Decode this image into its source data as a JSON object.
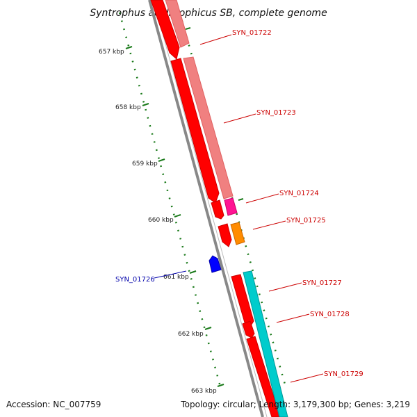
{
  "title": "Syntrophus aciditrophicus SB, complete genome",
  "footer": {
    "accession": "Accession: NC_007759",
    "topology": "Topology: circular; Length: 3,179,300 bp; Genes: 3,219"
  },
  "ticks": [
    {
      "label": "657 kbp"
    },
    {
      "label": "658 kbp"
    },
    {
      "label": "659 kbp"
    },
    {
      "label": "660 kbp"
    },
    {
      "label": "661 kbp"
    },
    {
      "label": "662 kbp"
    },
    {
      "label": "663 kbp"
    }
  ],
  "genes": [
    {
      "label": "SYN_01722",
      "color": "#cc0000"
    },
    {
      "label": "SYN_01723",
      "color": "#cc0000"
    },
    {
      "label": "SYN_01724",
      "color": "#cc0000"
    },
    {
      "label": "SYN_01725",
      "color": "#cc0000"
    },
    {
      "label": "SYN_01726",
      "color": "#0000aa"
    },
    {
      "label": "SYN_01727",
      "color": "#cc0000"
    },
    {
      "label": "SYN_01728",
      "color": "#cc0000"
    },
    {
      "label": "SYN_01729",
      "color": "#cc0000"
    }
  ],
  "colors": {
    "cds": "#ff0000",
    "cds_reverse": "#0000ff",
    "rna_pink": "#f08080",
    "magenta": "#ff1493",
    "orange": "#ff8c00",
    "cyan": "#00cccc",
    "backbone": "#888888",
    "tick_green": "#1a7a1a"
  }
}
